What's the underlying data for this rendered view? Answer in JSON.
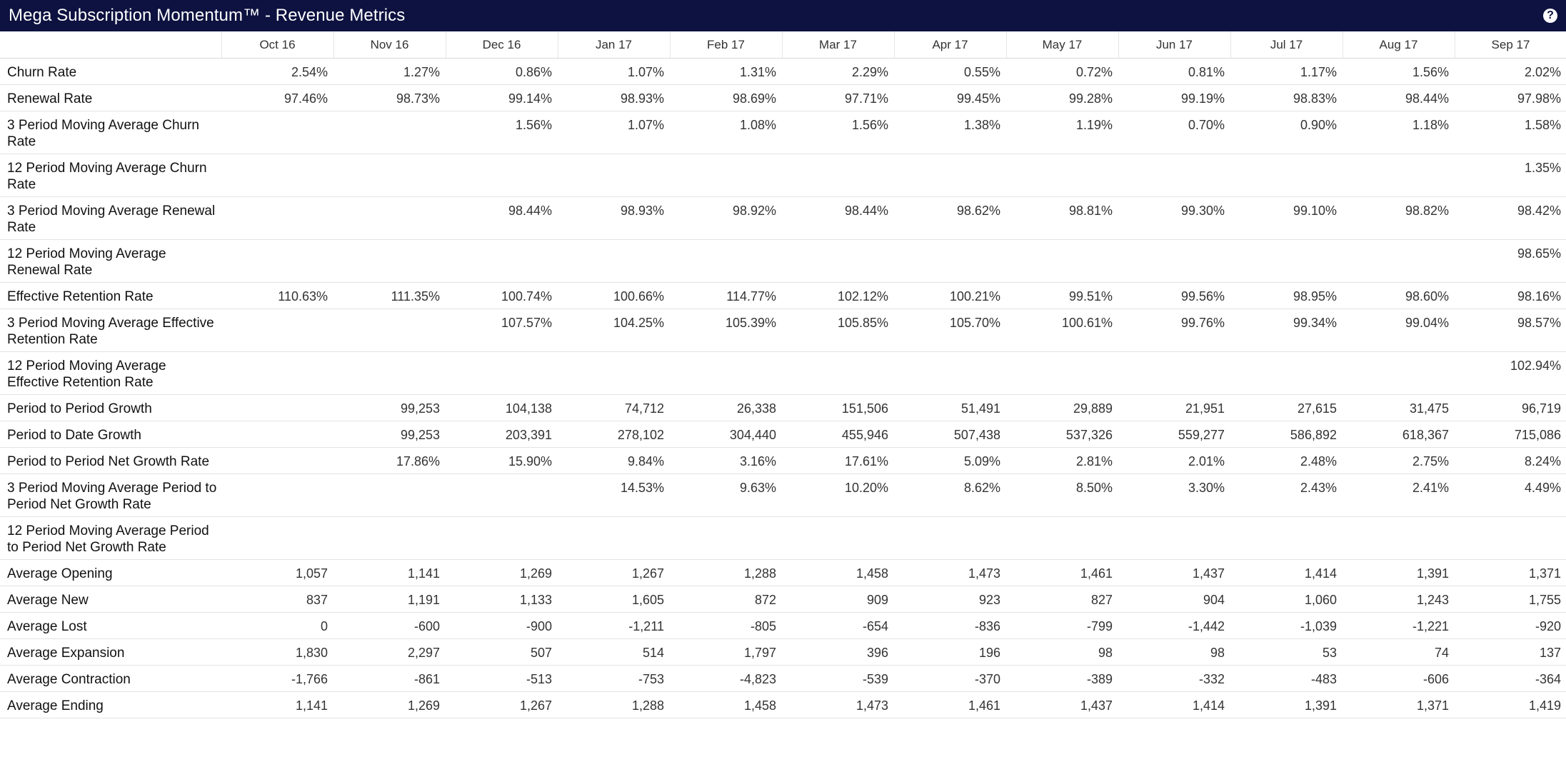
{
  "window": {
    "title": "Mega Subscription Momentum™ - Revenue Metrics",
    "help_icon": "?"
  },
  "table": {
    "columns": [
      "Oct 16",
      "Nov 16",
      "Dec 16",
      "Jan 17",
      "Feb 17",
      "Mar 17",
      "Apr 17",
      "May 17",
      "Jun 17",
      "Jul 17",
      "Aug 17",
      "Sep 17"
    ],
    "rows": [
      {
        "label": "Churn Rate",
        "values": [
          "2.54%",
          "1.27%",
          "0.86%",
          "1.07%",
          "1.31%",
          "2.29%",
          "0.55%",
          "0.72%",
          "0.81%",
          "1.17%",
          "1.56%",
          "2.02%"
        ]
      },
      {
        "label": "Renewal Rate",
        "values": [
          "97.46%",
          "98.73%",
          "99.14%",
          "98.93%",
          "98.69%",
          "97.71%",
          "99.45%",
          "99.28%",
          "99.19%",
          "98.83%",
          "98.44%",
          "97.98%"
        ]
      },
      {
        "label": "3 Period Moving Average Churn Rate",
        "values": [
          "",
          "",
          "1.56%",
          "1.07%",
          "1.08%",
          "1.56%",
          "1.38%",
          "1.19%",
          "0.70%",
          "0.90%",
          "1.18%",
          "1.58%"
        ]
      },
      {
        "label": "12 Period Moving Average Churn Rate",
        "values": [
          "",
          "",
          "",
          "",
          "",
          "",
          "",
          "",
          "",
          "",
          "",
          "1.35%"
        ]
      },
      {
        "label": "3 Period Moving Average Renewal Rate",
        "values": [
          "",
          "",
          "98.44%",
          "98.93%",
          "98.92%",
          "98.44%",
          "98.62%",
          "98.81%",
          "99.30%",
          "99.10%",
          "98.82%",
          "98.42%"
        ]
      },
      {
        "label": "12 Period Moving Average Renewal Rate",
        "values": [
          "",
          "",
          "",
          "",
          "",
          "",
          "",
          "",
          "",
          "",
          "",
          "98.65%"
        ]
      },
      {
        "label": "Effective Retention Rate",
        "values": [
          "110.63%",
          "111.35%",
          "100.74%",
          "100.66%",
          "114.77%",
          "102.12%",
          "100.21%",
          "99.51%",
          "99.56%",
          "98.95%",
          "98.60%",
          "98.16%"
        ]
      },
      {
        "label": "3 Period Moving Average Effective Retention Rate",
        "values": [
          "",
          "",
          "107.57%",
          "104.25%",
          "105.39%",
          "105.85%",
          "105.70%",
          "100.61%",
          "99.76%",
          "99.34%",
          "99.04%",
          "98.57%"
        ]
      },
      {
        "label": "12 Period Moving Average Effective Retention Rate",
        "values": [
          "",
          "",
          "",
          "",
          "",
          "",
          "",
          "",
          "",
          "",
          "",
          "102.94%"
        ]
      },
      {
        "label": "Period to Period Growth",
        "values": [
          "",
          "99,253",
          "104,138",
          "74,712",
          "26,338",
          "151,506",
          "51,491",
          "29,889",
          "21,951",
          "27,615",
          "31,475",
          "96,719"
        ]
      },
      {
        "label": "Period to Date Growth",
        "values": [
          "",
          "99,253",
          "203,391",
          "278,102",
          "304,440",
          "455,946",
          "507,438",
          "537,326",
          "559,277",
          "586,892",
          "618,367",
          "715,086"
        ]
      },
      {
        "label": "Period to Period Net Growth Rate",
        "values": [
          "",
          "17.86%",
          "15.90%",
          "9.84%",
          "3.16%",
          "17.61%",
          "5.09%",
          "2.81%",
          "2.01%",
          "2.48%",
          "2.75%",
          "8.24%"
        ]
      },
      {
        "label": "3 Period Moving Average Period to Period Net Growth Rate",
        "values": [
          "",
          "",
          "",
          "14.53%",
          "9.63%",
          "10.20%",
          "8.62%",
          "8.50%",
          "3.30%",
          "2.43%",
          "2.41%",
          "4.49%"
        ]
      },
      {
        "label": "12 Period Moving Average Period to Period Net Growth Rate",
        "values": [
          "",
          "",
          "",
          "",
          "",
          "",
          "",
          "",
          "",
          "",
          "",
          ""
        ]
      },
      {
        "label": "Average Opening",
        "values": [
          "1,057",
          "1,141",
          "1,269",
          "1,267",
          "1,288",
          "1,458",
          "1,473",
          "1,461",
          "1,437",
          "1,414",
          "1,391",
          "1,371"
        ]
      },
      {
        "label": "Average New",
        "values": [
          "837",
          "1,191",
          "1,133",
          "1,605",
          "872",
          "909",
          "923",
          "827",
          "904",
          "1,060",
          "1,243",
          "1,755"
        ]
      },
      {
        "label": "Average Lost",
        "values": [
          "0",
          "-600",
          "-900",
          "-1,211",
          "-805",
          "-654",
          "-836",
          "-799",
          "-1,442",
          "-1,039",
          "-1,221",
          "-920"
        ]
      },
      {
        "label": "Average Expansion",
        "values": [
          "1,830",
          "2,297",
          "507",
          "514",
          "1,797",
          "396",
          "196",
          "98",
          "98",
          "53",
          "74",
          "137"
        ]
      },
      {
        "label": "Average Contraction",
        "values": [
          "-1,766",
          "-861",
          "-513",
          "-753",
          "-4,823",
          "-539",
          "-370",
          "-389",
          "-332",
          "-483",
          "-606",
          "-364"
        ]
      },
      {
        "label": "Average Ending",
        "values": [
          "1,141",
          "1,269",
          "1,267",
          "1,288",
          "1,458",
          "1,473",
          "1,461",
          "1,437",
          "1,414",
          "1,391",
          "1,371",
          "1,419"
        ]
      }
    ]
  }
}
